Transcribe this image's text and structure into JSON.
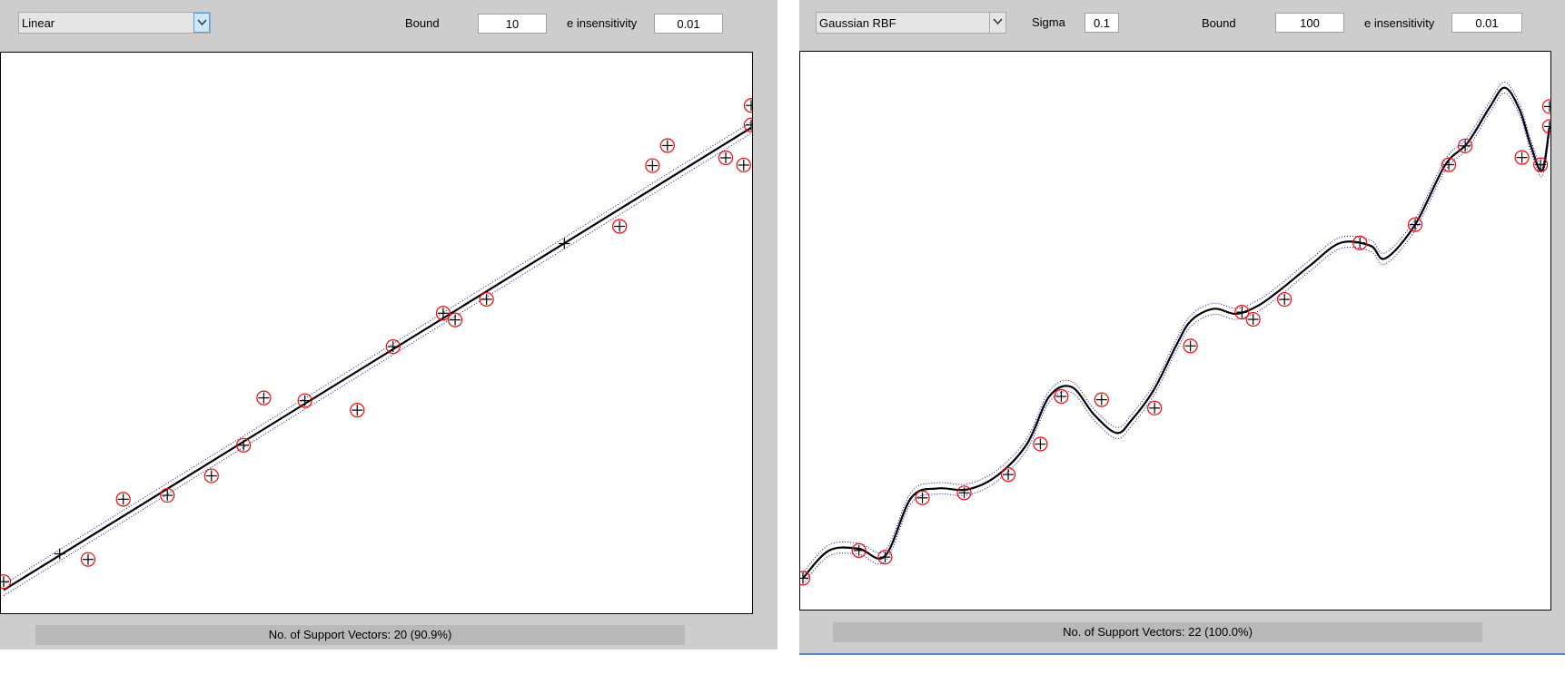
{
  "left": {
    "kernel_selected": "Linear",
    "bound_label": "Bound",
    "bound_value": "10",
    "epsilon_label": "e insensitivity",
    "epsilon_value": "0.01",
    "status": "No. of Support Vectors: 20 (90.9%)"
  },
  "right": {
    "kernel_selected": "Gaussian RBF",
    "sigma_label": "Sigma",
    "sigma_value": "0.1",
    "bound_label": "Bound",
    "bound_value": "100",
    "epsilon_label": "e insensitivity",
    "epsilon_value": "0.01",
    "status": "No. of Support Vectors: 22 (100.0%)"
  },
  "colors": {
    "panel_bg": "#cdcdcd",
    "status_bg": "#b9b9b9",
    "curve": "#000000",
    "margin": "#0000cc",
    "support_vector_circle": "#ff0000",
    "point_marker": "#000000"
  },
  "chart_data": [
    {
      "type": "scatter",
      "title": "",
      "xlabel": "",
      "ylabel": "",
      "xlim": [
        0,
        1
      ],
      "ylim": [
        0,
        1
      ],
      "grid": false,
      "points": [
        {
          "x": 0.0,
          "y": 0.055,
          "sv": true
        },
        {
          "x": 0.075,
          "y": 0.105,
          "sv": false
        },
        {
          "x": 0.113,
          "y": 0.095,
          "sv": true
        },
        {
          "x": 0.16,
          "y": 0.203,
          "sv": true
        },
        {
          "x": 0.219,
          "y": 0.21,
          "sv": true
        },
        {
          "x": 0.278,
          "y": 0.245,
          "sv": true
        },
        {
          "x": 0.321,
          "y": 0.3,
          "sv": true
        },
        {
          "x": 0.348,
          "y": 0.385,
          "sv": true
        },
        {
          "x": 0.403,
          "y": 0.38,
          "sv": true
        },
        {
          "x": 0.473,
          "y": 0.363,
          "sv": true
        },
        {
          "x": 0.521,
          "y": 0.477,
          "sv": true
        },
        {
          "x": 0.588,
          "y": 0.537,
          "sv": true
        },
        {
          "x": 0.604,
          "y": 0.525,
          "sv": true
        },
        {
          "x": 0.646,
          "y": 0.562,
          "sv": true
        },
        {
          "x": 0.75,
          "y": 0.662,
          "sv": false
        },
        {
          "x": 0.824,
          "y": 0.693,
          "sv": true
        },
        {
          "x": 0.868,
          "y": 0.802,
          "sv": true
        },
        {
          "x": 0.888,
          "y": 0.838,
          "sv": true
        },
        {
          "x": 0.966,
          "y": 0.816,
          "sv": true
        },
        {
          "x": 0.99,
          "y": 0.803,
          "sv": true
        },
        {
          "x": 1.0,
          "y": 0.875,
          "sv": true
        },
        {
          "x": 1.0,
          "y": 0.91,
          "sv": true
        }
      ],
      "regression": {
        "kind": "linear",
        "x": [
          0.0,
          1.0
        ],
        "y": [
          0.04,
          0.87
        ]
      },
      "epsilon_margin": 0.01
    },
    {
      "type": "scatter",
      "title": "",
      "xlabel": "",
      "ylabel": "",
      "xlim": [
        0,
        1
      ],
      "ylim": [
        0,
        1
      ],
      "grid": false,
      "points": [
        {
          "x": 0.0,
          "y": 0.055,
          "sv": true
        },
        {
          "x": 0.075,
          "y": 0.105,
          "sv": true
        },
        {
          "x": 0.11,
          "y": 0.093,
          "sv": true
        },
        {
          "x": 0.16,
          "y": 0.2,
          "sv": true
        },
        {
          "x": 0.216,
          "y": 0.209,
          "sv": true
        },
        {
          "x": 0.275,
          "y": 0.242,
          "sv": true
        },
        {
          "x": 0.318,
          "y": 0.297,
          "sv": true
        },
        {
          "x": 0.346,
          "y": 0.383,
          "sv": true
        },
        {
          "x": 0.4,
          "y": 0.377,
          "sv": true
        },
        {
          "x": 0.471,
          "y": 0.362,
          "sv": true
        },
        {
          "x": 0.519,
          "y": 0.474,
          "sv": true
        },
        {
          "x": 0.588,
          "y": 0.535,
          "sv": true
        },
        {
          "x": 0.603,
          "y": 0.522,
          "sv": true
        },
        {
          "x": 0.645,
          "y": 0.558,
          "sv": true
        },
        {
          "x": 0.746,
          "y": 0.66,
          "sv": true
        },
        {
          "x": 0.82,
          "y": 0.693,
          "sv": true
        },
        {
          "x": 0.865,
          "y": 0.801,
          "sv": true
        },
        {
          "x": 0.887,
          "y": 0.835,
          "sv": true
        },
        {
          "x": 0.963,
          "y": 0.814,
          "sv": true
        },
        {
          "x": 0.988,
          "y": 0.801,
          "sv": true
        },
        {
          "x": 1.0,
          "y": 0.87,
          "sv": true
        },
        {
          "x": 1.0,
          "y": 0.906,
          "sv": true
        }
      ],
      "regression": {
        "kind": "rbf",
        "x": [
          0.0,
          0.035,
          0.075,
          0.11,
          0.145,
          0.18,
          0.22,
          0.26,
          0.3,
          0.33,
          0.36,
          0.39,
          0.42,
          0.44,
          0.47,
          0.5,
          0.52,
          0.55,
          0.58,
          0.61,
          0.64,
          0.68,
          0.72,
          0.76,
          0.78,
          0.82,
          0.86,
          0.89,
          0.92,
          0.94,
          0.96,
          0.975,
          0.99,
          1.0
        ],
        "y": [
          0.055,
          0.105,
          0.108,
          0.095,
          0.2,
          0.217,
          0.215,
          0.24,
          0.297,
          0.383,
          0.4,
          0.35,
          0.317,
          0.34,
          0.395,
          0.475,
          0.52,
          0.541,
          0.532,
          0.547,
          0.576,
          0.62,
          0.66,
          0.655,
          0.632,
          0.693,
          0.8,
          0.84,
          0.905,
          0.94,
          0.9,
          0.835,
          0.79,
          0.87
        ]
      },
      "epsilon_margin": 0.01
    }
  ]
}
